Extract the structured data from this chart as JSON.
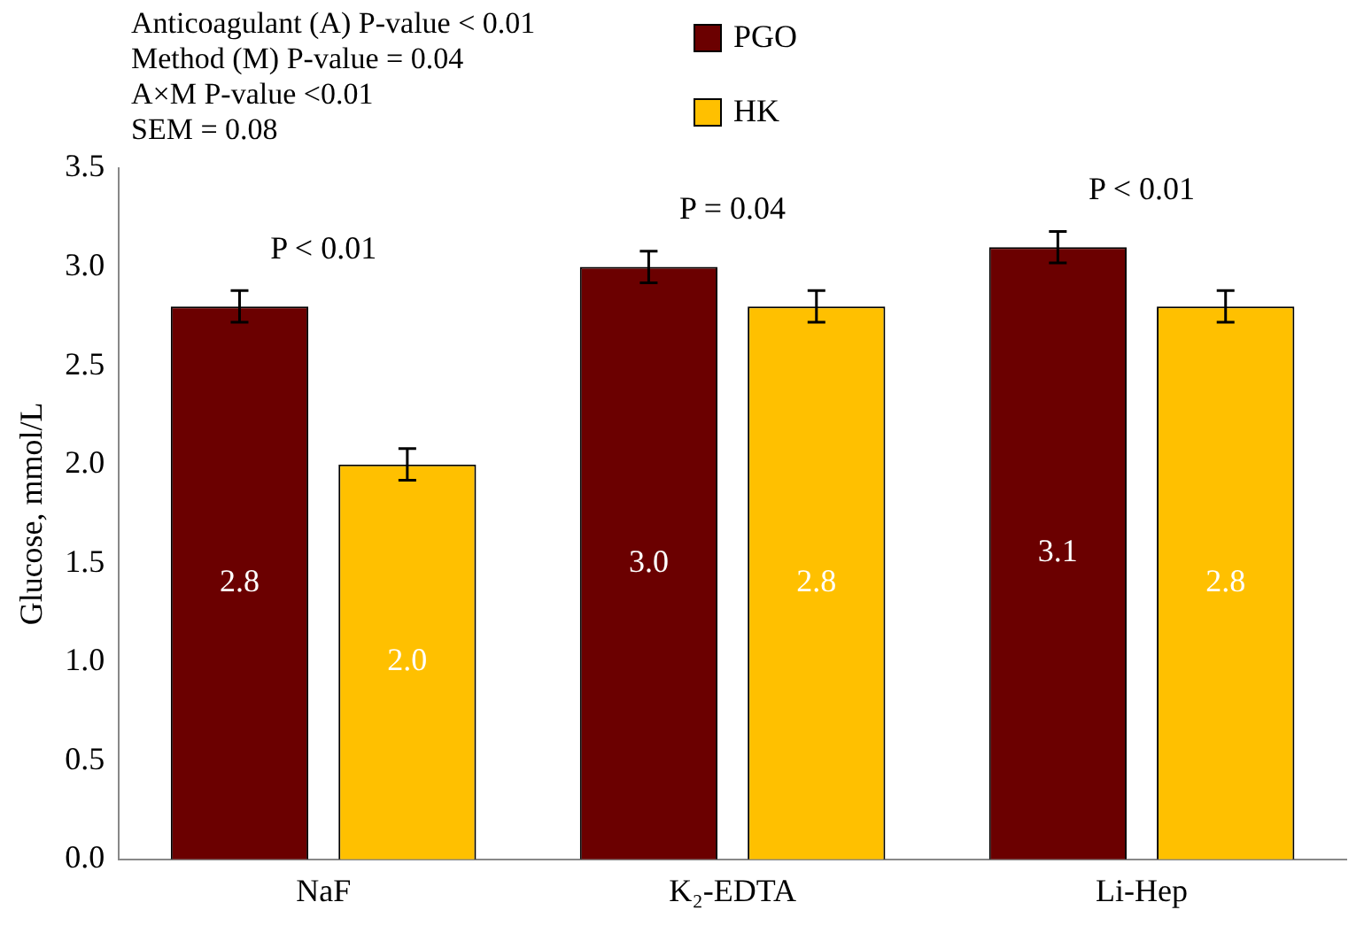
{
  "chart_data": {
    "type": "bar",
    "ylabel": "Glucose, mmol/L",
    "categories": [
      "NaF",
      "K₂-EDTA",
      "Li-Hep"
    ],
    "series": [
      {
        "name": "PGO",
        "color": "#6b0000",
        "values": [
          2.8,
          3.0,
          3.1
        ],
        "errors": [
          0.08,
          0.08,
          0.08
        ],
        "value_labels": [
          "2.8",
          "3.0",
          "3.1"
        ]
      },
      {
        "name": "HK",
        "color": "#ffc000",
        "values": [
          2.0,
          2.8,
          2.8
        ],
        "errors": [
          0.08,
          0.08,
          0.08
        ],
        "value_labels": [
          "2.0",
          "2.8",
          "2.8"
        ]
      }
    ],
    "ylim": [
      0,
      3.5
    ],
    "yticks": [
      {
        "value": 0,
        "label": "0.0"
      },
      0.5,
      {
        "value": 1,
        "label": "1.0"
      },
      1.5,
      {
        "value": 2,
        "label": "2.0"
      },
      2.5,
      {
        "value": 3,
        "label": "3.0"
      },
      3.5
    ],
    "grid": false,
    "legend": "top",
    "annotations": [
      "Anticoagulant (A) P-value < 0.01",
      "Method (M) P-value = 0.04",
      "A×M P-value <0.01",
      "SEM = 0.08",
      "P < 0.01",
      "P = 0.04",
      "P < 0.01"
    ]
  }
}
